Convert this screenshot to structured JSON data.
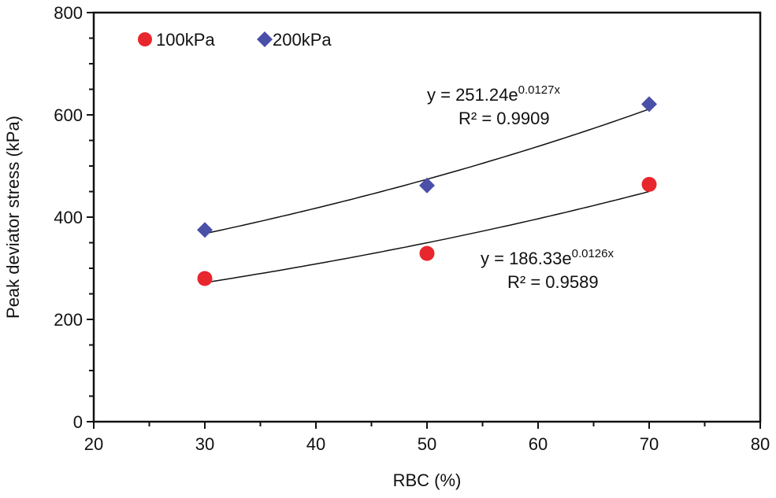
{
  "chart_data": {
    "type": "scatter",
    "xlabel": "RBC (%)",
    "ylabel": "Peak deviator stress (kPa)",
    "xlim": [
      20,
      80
    ],
    "ylim": [
      0,
      800
    ],
    "xticks": [
      20,
      30,
      40,
      50,
      60,
      70,
      80
    ],
    "yticks": [
      0,
      200,
      400,
      600,
      800
    ],
    "grid": false,
    "legend_position": "top-left",
    "series": [
      {
        "name": "100kPa",
        "marker": "circle",
        "color": "#e8262d",
        "x": [
          30,
          50,
          70
        ],
        "y": [
          280,
          329,
          464
        ],
        "trendline": {
          "type": "exponential",
          "a": 186.33,
          "b": 0.0126,
          "equation_base": "y = 186.33e",
          "equation_exp": "0.0126x",
          "r2_label": "R² = 0.9589"
        }
      },
      {
        "name": "200kPa",
        "marker": "diamond",
        "color": "#4a4fa8",
        "x": [
          30,
          50,
          70
        ],
        "y": [
          375,
          462,
          621
        ],
        "trendline": {
          "type": "exponential",
          "a": 251.24,
          "b": 0.0127,
          "equation_base": "y = 251.24e",
          "equation_exp": "0.0127x",
          "r2_label": "R² = 0.9909"
        }
      }
    ]
  }
}
